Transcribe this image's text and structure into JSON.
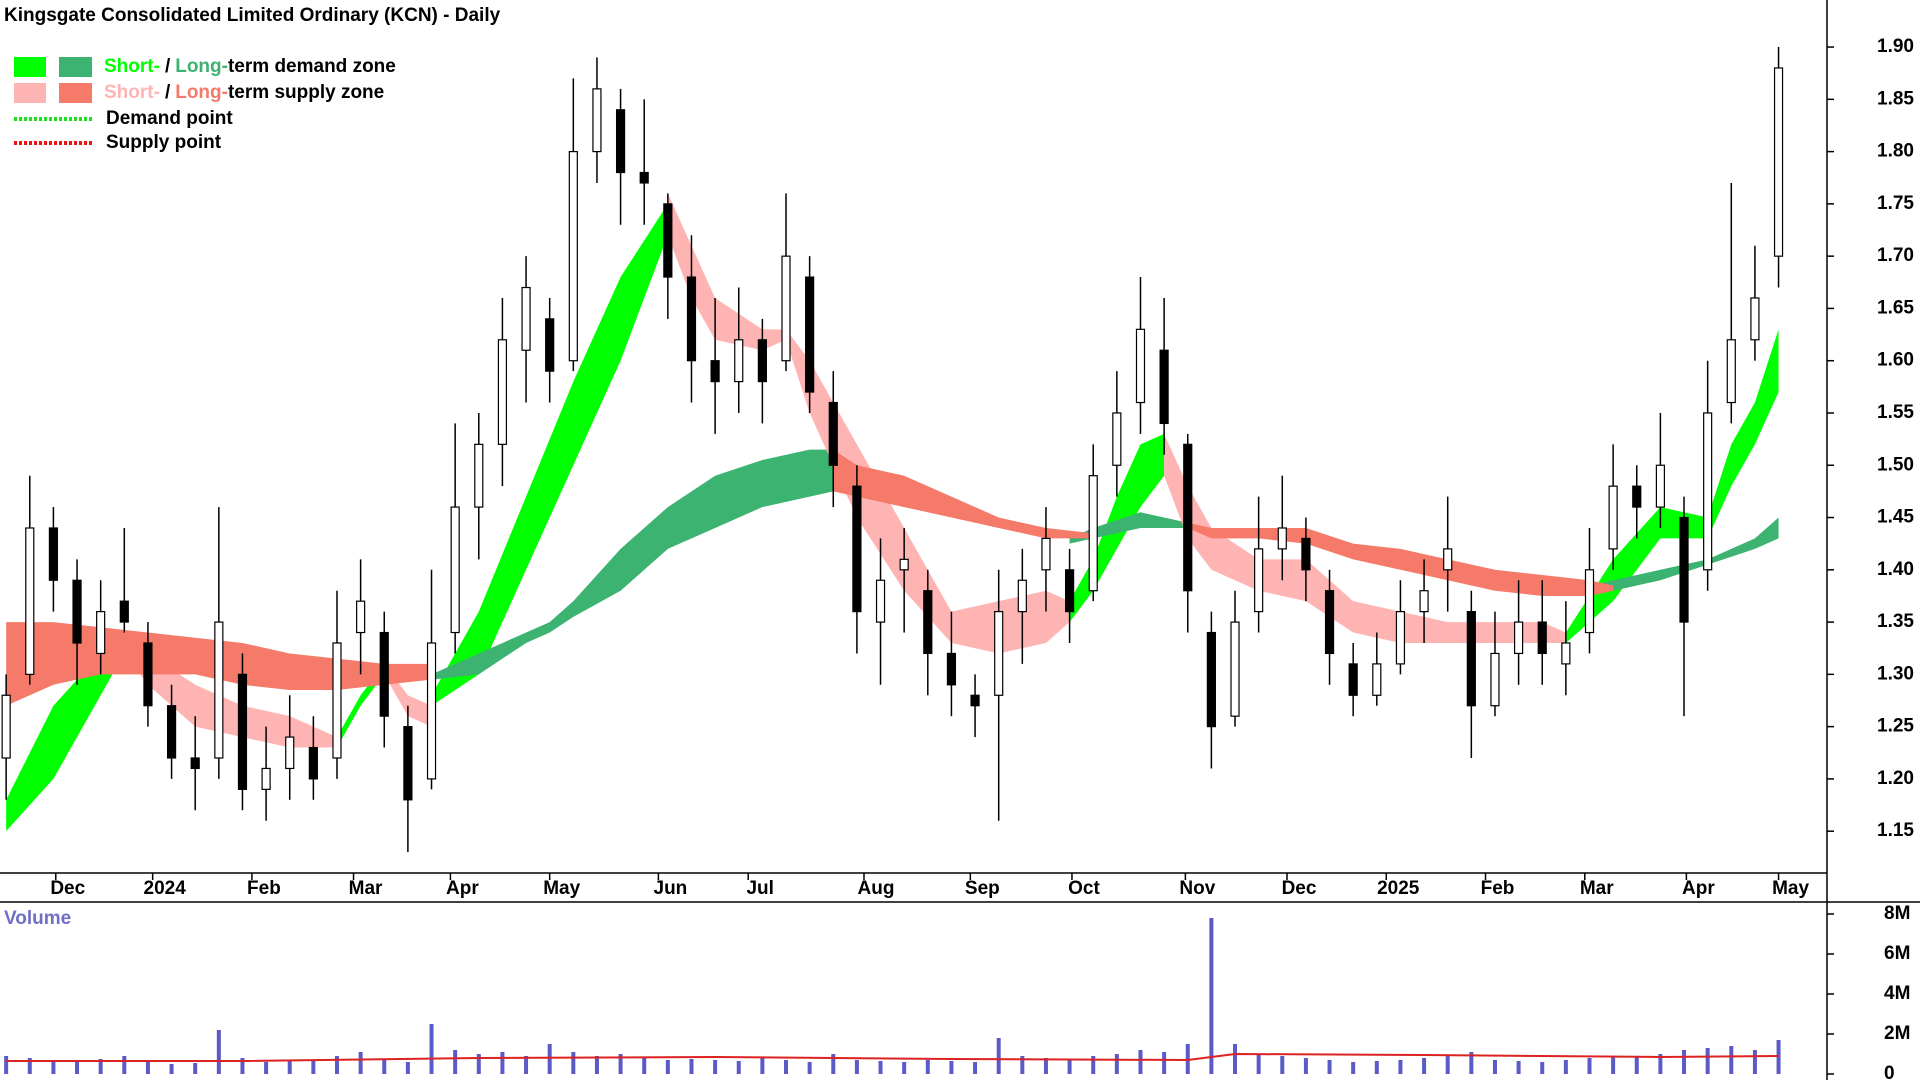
{
  "chart_data": {
    "type": "candlestick",
    "title": "Kingsgate Consolidated Limited Ordinary (KCN) - Daily",
    "open": [
      1.22,
      1.3,
      1.44,
      1.39,
      1.32,
      1.37,
      1.33,
      1.27,
      1.22,
      1.22,
      1.3,
      1.19,
      1.21,
      1.23,
      1.22,
      1.34,
      1.34,
      1.25,
      1.2,
      1.34,
      1.46,
      1.52,
      1.61,
      1.64,
      1.6,
      1.8,
      1.84,
      1.78,
      1.75,
      1.68,
      1.6,
      1.58,
      1.62,
      1.6,
      1.68,
      1.56,
      1.48,
      1.35,
      1.4,
      1.38,
      1.32,
      1.28,
      1.28,
      1.36,
      1.4,
      1.4,
      1.38,
      1.5,
      1.56,
      1.61,
      1.52,
      1.34,
      1.26,
      1.36,
      1.42,
      1.43,
      1.38,
      1.31,
      1.28,
      1.31,
      1.36,
      1.4,
      1.36,
      1.27,
      1.32,
      1.35,
      1.31,
      1.34,
      1.42,
      1.48,
      1.46,
      1.45,
      1.4,
      1.56,
      1.62,
      1.7
    ],
    "high": [
      1.3,
      1.49,
      1.46,
      1.41,
      1.39,
      1.44,
      1.35,
      1.29,
      1.26,
      1.46,
      1.32,
      1.25,
      1.28,
      1.26,
      1.38,
      1.41,
      1.36,
      1.27,
      1.4,
      1.54,
      1.55,
      1.66,
      1.7,
      1.66,
      1.87,
      1.89,
      1.86,
      1.85,
      1.76,
      1.72,
      1.66,
      1.67,
      1.64,
      1.76,
      1.7,
      1.59,
      1.5,
      1.43,
      1.44,
      1.4,
      1.36,
      1.3,
      1.4,
      1.42,
      1.46,
      1.42,
      1.52,
      1.59,
      1.68,
      1.66,
      1.53,
      1.36,
      1.38,
      1.47,
      1.49,
      1.45,
      1.4,
      1.33,
      1.34,
      1.39,
      1.41,
      1.47,
      1.38,
      1.36,
      1.39,
      1.39,
      1.37,
      1.44,
      1.52,
      1.5,
      1.55,
      1.47,
      1.6,
      1.77,
      1.71,
      1.9
    ],
    "low": [
      1.18,
      1.29,
      1.36,
      1.29,
      1.3,
      1.34,
      1.25,
      1.2,
      1.17,
      1.2,
      1.17,
      1.16,
      1.18,
      1.18,
      1.2,
      1.3,
      1.23,
      1.13,
      1.19,
      1.32,
      1.41,
      1.48,
      1.56,
      1.56,
      1.59,
      1.77,
      1.73,
      1.73,
      1.64,
      1.56,
      1.53,
      1.55,
      1.54,
      1.59,
      1.55,
      1.46,
      1.32,
      1.29,
      1.34,
      1.28,
      1.26,
      1.24,
      1.16,
      1.31,
      1.36,
      1.33,
      1.37,
      1.47,
      1.53,
      1.51,
      1.34,
      1.21,
      1.25,
      1.34,
      1.39,
      1.37,
      1.29,
      1.26,
      1.27,
      1.3,
      1.33,
      1.36,
      1.22,
      1.26,
      1.29,
      1.29,
      1.28,
      1.32,
      1.4,
      1.43,
      1.44,
      1.26,
      1.38,
      1.54,
      1.6,
      1.67
    ],
    "close": [
      1.28,
      1.44,
      1.39,
      1.33,
      1.36,
      1.35,
      1.27,
      1.22,
      1.21,
      1.35,
      1.19,
      1.21,
      1.24,
      1.2,
      1.33,
      1.37,
      1.26,
      1.18,
      1.33,
      1.46,
      1.52,
      1.62,
      1.67,
      1.59,
      1.8,
      1.86,
      1.78,
      1.77,
      1.68,
      1.6,
      1.58,
      1.62,
      1.58,
      1.7,
      1.57,
      1.5,
      1.36,
      1.39,
      1.41,
      1.32,
      1.29,
      1.27,
      1.36,
      1.39,
      1.43,
      1.36,
      1.49,
      1.55,
      1.63,
      1.54,
      1.38,
      1.25,
      1.35,
      1.42,
      1.44,
      1.4,
      1.32,
      1.28,
      1.31,
      1.36,
      1.38,
      1.42,
      1.27,
      1.32,
      1.35,
      1.32,
      1.33,
      1.4,
      1.48,
      1.46,
      1.5,
      1.35,
      1.55,
      1.62,
      1.66,
      1.88
    ],
    "xlim": [
      -0.26,
      77.05
    ],
    "xticks": [
      {
        "value": 2.1,
        "label": "Dec"
      },
      {
        "value": 6.2,
        "label": "2024"
      },
      {
        "value": 10.4,
        "label": "Feb"
      },
      {
        "value": 14.7,
        "label": "Mar"
      },
      {
        "value": 18.8,
        "label": "Apr"
      },
      {
        "value": 23.0,
        "label": "May"
      },
      {
        "value": 27.6,
        "label": "Jun"
      },
      {
        "value": 31.4,
        "label": "Jul"
      },
      {
        "value": 36.3,
        "label": "Aug"
      },
      {
        "value": 40.8,
        "label": "Sep"
      },
      {
        "value": 45.1,
        "label": "Oct"
      },
      {
        "value": 49.9,
        "label": "Nov"
      },
      {
        "value": 54.2,
        "label": "Dec"
      },
      {
        "value": 58.4,
        "label": "2025"
      },
      {
        "value": 62.6,
        "label": "Feb"
      },
      {
        "value": 66.8,
        "label": "Mar"
      },
      {
        "value": 71.1,
        "label": "Apr"
      },
      {
        "value": 75.0,
        "label": "May"
      }
    ],
    "ylim": [
      1.11,
      1.945
    ],
    "yticks": [
      1.15,
      {
        "value": 1.2,
        "label": "1.20"
      },
      1.25,
      {
        "value": 1.3,
        "label": "1.30"
      },
      1.35,
      {
        "value": 1.4,
        "label": "1.40"
      },
      1.45,
      {
        "value": 1.5,
        "label": "1.50"
      },
      1.55,
      {
        "value": 1.6,
        "label": "1.60"
      },
      1.65,
      {
        "value": 1.7,
        "label": "1.70"
      },
      1.75,
      {
        "value": 1.8,
        "label": "1.80"
      },
      1.85,
      {
        "value": 1.9,
        "label": "1.90"
      }
    ],
    "zones": [
      {
        "color": "#00ff00",
        "x": [
          0,
          2,
          4,
          5,
          6,
          14,
          15,
          16,
          17,
          18,
          20,
          22,
          24,
          26,
          28,
          30,
          45,
          46,
          47,
          48,
          49,
          55,
          66,
          68,
          70,
          72,
          73,
          74,
          75
        ],
        "upper": [
          1.18,
          1.27,
          1.32,
          1.34,
          null,
          1.24,
          1.28,
          1.31,
          null,
          1.28,
          1.36,
          1.47,
          1.58,
          1.68,
          1.75,
          null,
          1.37,
          1.41,
          1.47,
          1.52,
          1.53,
          null,
          1.34,
          1.41,
          1.46,
          1.45,
          1.52,
          1.56,
          1.63
        ],
        "lower": [
          1.15,
          1.2,
          1.28,
          1.32,
          null,
          1.23,
          1.27,
          1.3,
          null,
          1.27,
          1.3,
          1.4,
          1.5,
          1.6,
          1.72,
          null,
          1.35,
          1.38,
          1.42,
          1.46,
          1.49,
          null,
          1.33,
          1.37,
          1.43,
          1.43,
          1.48,
          1.52,
          1.57
        ]
      },
      {
        "color": "#3cb371",
        "x": [
          18,
          20,
          22,
          23,
          24,
          26,
          28,
          30,
          32,
          34,
          35,
          40,
          45,
          46,
          48,
          50,
          55,
          67,
          68,
          70,
          72,
          74,
          75
        ],
        "upper": [
          1.3,
          1.32,
          1.34,
          1.35,
          1.37,
          1.42,
          1.46,
          1.49,
          1.505,
          1.515,
          1.515,
          null,
          1.43,
          1.44,
          1.455,
          1.445,
          null,
          1.385,
          1.39,
          1.4,
          1.41,
          1.43,
          1.45
        ],
        "lower": [
          1.295,
          1.3,
          1.33,
          1.34,
          1.355,
          1.38,
          1.42,
          1.44,
          1.46,
          1.47,
          1.475,
          null,
          1.425,
          1.43,
          1.44,
          1.44,
          null,
          1.38,
          1.38,
          1.39,
          1.405,
          1.42,
          1.43
        ]
      },
      {
        "color": "#ffb4b4",
        "x": [
          5,
          6,
          8,
          10,
          12,
          14,
          15,
          16,
          17,
          18,
          20,
          28,
          29,
          30,
          32,
          33,
          34,
          36,
          38,
          40,
          42,
          44,
          45,
          46,
          49,
          50,
          51,
          53,
          55,
          57,
          59,
          61,
          63,
          65,
          66
        ],
        "upper": [
          1.34,
          1.32,
          1.29,
          1.27,
          1.26,
          1.24,
          null,
          1.31,
          1.28,
          1.27,
          null,
          1.76,
          1.71,
          1.66,
          1.63,
          1.63,
          1.6,
          1.52,
          1.44,
          1.36,
          1.37,
          1.38,
          1.37,
          null,
          1.53,
          1.48,
          1.44,
          1.41,
          1.41,
          1.37,
          1.36,
          1.35,
          1.35,
          1.35,
          1.34
        ],
        "lower": [
          1.32,
          1.29,
          1.25,
          1.24,
          1.23,
          1.23,
          null,
          1.3,
          1.26,
          1.25,
          null,
          1.72,
          1.66,
          1.62,
          1.61,
          1.62,
          1.55,
          1.45,
          1.38,
          1.33,
          1.32,
          1.33,
          1.35,
          null,
          1.49,
          1.43,
          1.4,
          1.38,
          1.37,
          1.34,
          1.33,
          1.33,
          1.33,
          1.33,
          1.33
        ]
      },
      {
        "color": "#f57a6a",
        "x": [
          0,
          2,
          4,
          6,
          8,
          10,
          12,
          14,
          16,
          18,
          27,
          35,
          36,
          38,
          40,
          42,
          44,
          46,
          48,
          50,
          51,
          53,
          55,
          57,
          59,
          61,
          63,
          65,
          67,
          68
        ],
        "upper": [
          1.35,
          1.35,
          1.345,
          1.34,
          1.335,
          1.33,
          1.32,
          1.315,
          1.31,
          1.31,
          null,
          1.515,
          1.5,
          1.49,
          1.47,
          1.45,
          1.44,
          1.435,
          null,
          1.445,
          1.44,
          1.44,
          1.44,
          1.425,
          1.42,
          1.41,
          1.4,
          1.395,
          1.39,
          1.385
        ],
        "lower": [
          1.27,
          1.29,
          1.3,
          1.3,
          1.3,
          1.29,
          1.285,
          1.285,
          1.29,
          1.295,
          null,
          1.475,
          1.47,
          1.46,
          1.45,
          1.44,
          1.43,
          1.43,
          null,
          1.44,
          1.43,
          1.43,
          1.425,
          1.41,
          1.4,
          1.39,
          1.38,
          1.375,
          1.375,
          1.38
        ]
      }
    ],
    "legend": [
      {
        "parts": [
          "Short-",
          "/",
          "Long-",
          "term demand zone"
        ]
      },
      {
        "parts": [
          "Short-",
          "/",
          "Long-",
          "term supply zone"
        ]
      },
      {
        "label": "Demand point",
        "color": "#22dd22"
      },
      {
        "label": "Supply point",
        "color": "#ee1111"
      }
    ],
    "volume": {
      "label": "Volume",
      "color": "#5a5ac8",
      "values": [
        900000,
        800000,
        700000,
        600000,
        750000,
        900000,
        600000,
        500000,
        550000,
        2200000,
        800000,
        600000,
        700000,
        650000,
        900000,
        1100000,
        700000,
        600000,
        2500000,
        1200000,
        1000000,
        1100000,
        900000,
        1500000,
        1100000,
        900000,
        1000000,
        800000,
        700000,
        750000,
        700000,
        650000,
        800000,
        700000,
        600000,
        1000000,
        700000,
        650000,
        600000,
        700000,
        650000,
        600000,
        1800000,
        900000,
        800000,
        700000,
        900000,
        1000000,
        1200000,
        1100000,
        1500000,
        7800000,
        1500000,
        1000000,
        900000,
        800000,
        700000,
        600000,
        650000,
        700000,
        800000,
        900000,
        1100000,
        700000,
        650000,
        600000,
        700000,
        800000,
        900000,
        900000,
        1000000,
        1200000,
        1300000,
        1400000,
        1200000,
        1700000
      ],
      "ylim": [
        0,
        8400000
      ],
      "yticks": [
        0,
        {
          "value": 2000000,
          "label": "2M"
        },
        {
          "value": 4000000,
          "label": "4M"
        },
        {
          "value": 6000000,
          "label": "6M"
        },
        {
          "value": 8000000,
          "label": "8M"
        }
      ],
      "average": {
        "color": "#dd2222",
        "x": [
          0,
          10,
          20,
          30,
          40,
          50,
          52,
          60,
          70,
          75
        ],
        "values": [
          650000,
          650000,
          800000,
          850000,
          750000,
          700000,
          1000000,
          950000,
          850000,
          900000
        ]
      }
    }
  }
}
